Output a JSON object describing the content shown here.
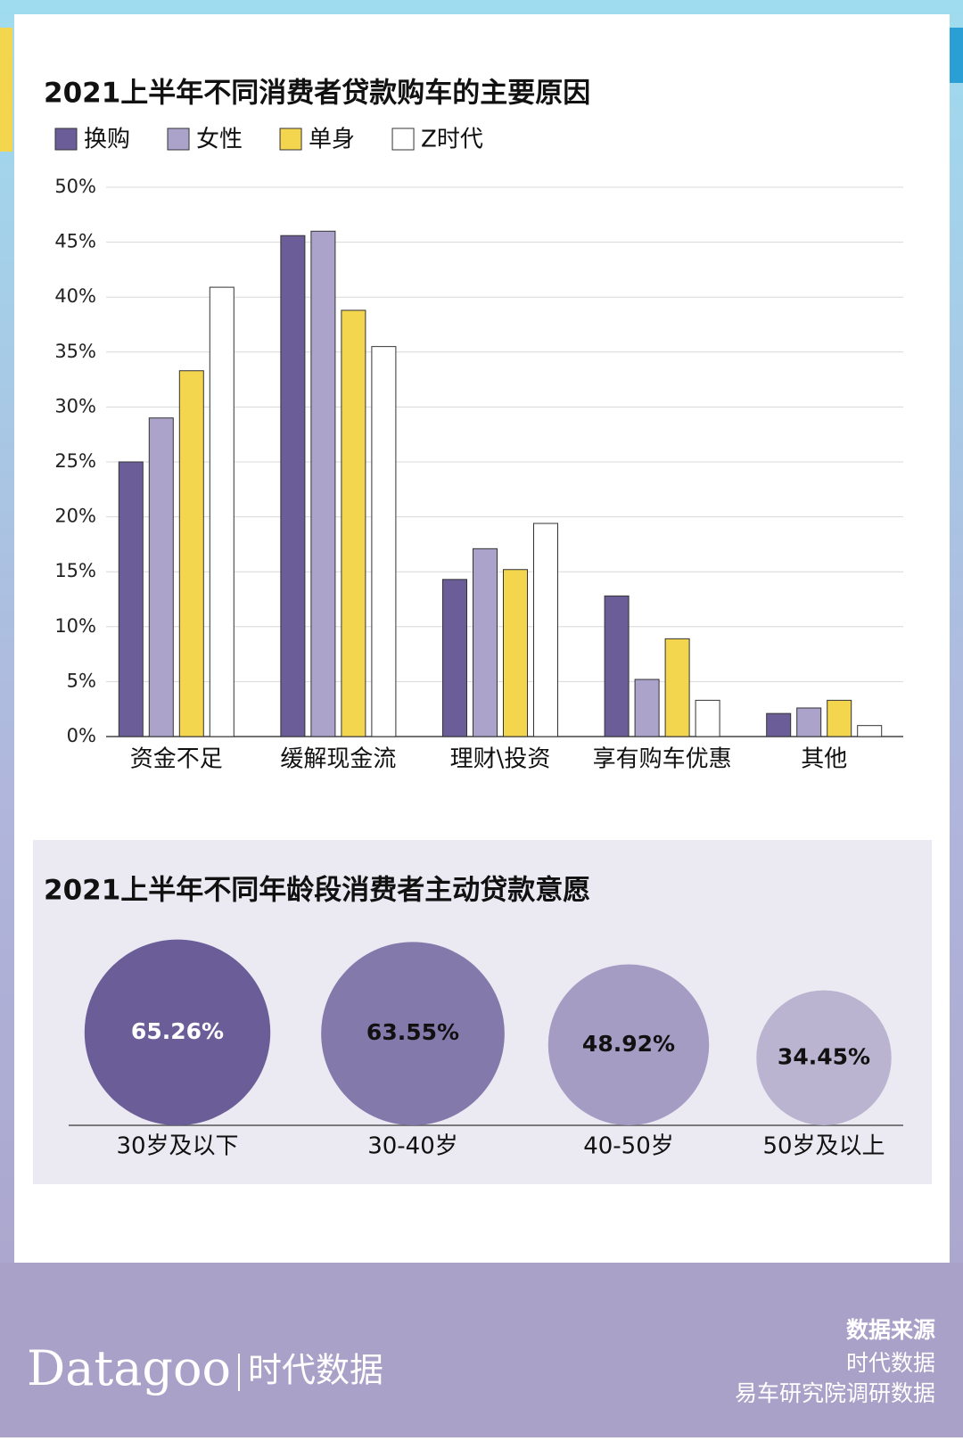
{
  "chart_data": [
    {
      "type": "bar",
      "title": "2021上半年不同消费者贷款购车的主要原因",
      "categories": [
        "资金不足",
        "缓解现金流",
        "理财\\投资",
        "享有购车优惠",
        "其他"
      ],
      "series": [
        {
          "name": "换购",
          "color": "#6b5e98",
          "values": [
            25,
            45.6,
            14.3,
            12.8,
            2.1
          ]
        },
        {
          "name": "女性",
          "color": "#aca3cb",
          "values": [
            29,
            46,
            17.1,
            5.2,
            2.6
          ]
        },
        {
          "name": "单身",
          "color": "#f3d54e",
          "values": [
            33.3,
            38.8,
            15.2,
            8.9,
            3.3
          ]
        },
        {
          "name": "Z时代",
          "color": "#ffffff",
          "values": [
            40.9,
            35.5,
            19.4,
            3.3,
            1.0
          ]
        }
      ],
      "ylim": [
        0,
        50
      ],
      "yticks": [
        {
          "value": 0,
          "label": "0%"
        },
        {
          "value": 5,
          "label": "5%"
        },
        {
          "value": 10,
          "label": "10%"
        },
        {
          "value": 15,
          "label": "15%"
        },
        {
          "value": 20,
          "label": "20%"
        },
        {
          "value": 25,
          "label": "25%"
        },
        {
          "value": 30,
          "label": "30%"
        },
        {
          "value": 35,
          "label": "35%"
        },
        {
          "value": 40,
          "label": "40%"
        },
        {
          "value": 45,
          "label": "45%"
        },
        {
          "value": 50,
          "label": "50%"
        }
      ],
      "grid": true
    },
    {
      "type": "bubble",
      "title": "2021上半年不同年龄段消费者主动贷款意愿",
      "categories": [
        "30岁及以下",
        "30-40岁",
        "40-50岁",
        "50岁及以上"
      ],
      "values": [
        65.26,
        63.55,
        48.92,
        34.45
      ],
      "value_labels": [
        "65.26%",
        "63.55%",
        "48.92%",
        "34.45%"
      ],
      "colors": [
        "#6b5e98",
        "#8479ab",
        "#a59cc4",
        "#bab4d1"
      ],
      "value_label_colors": [
        "#ffffff",
        "#111111",
        "#111111",
        "#111111"
      ]
    }
  ],
  "footer": {
    "brand": "Datagoo",
    "brand_cn": "时代数据",
    "source_title": "数据来源",
    "sources": [
      "时代数据",
      "易车研究院调研数据"
    ]
  }
}
